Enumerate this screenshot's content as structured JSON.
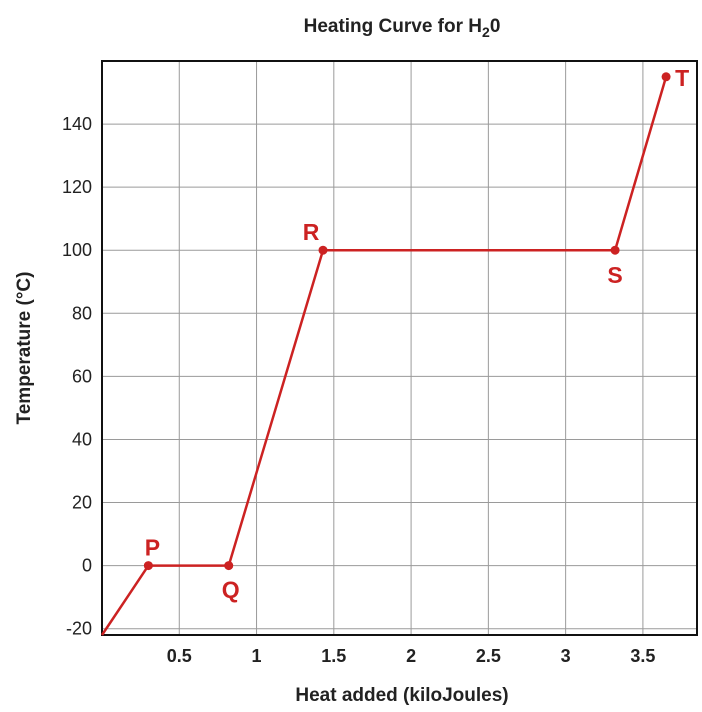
{
  "chart_data": {
    "type": "line",
    "title": "Heating Curve for H",
    "title_subscript": "2",
    "title_suffix": "0",
    "xlabel": "Heat added (kiloJoules)",
    "ylabel": "Temperature (°C)",
    "xlim": [
      0,
      3.85
    ],
    "ylim": [
      -22,
      160
    ],
    "x_ticks": [
      0.5,
      1,
      1.5,
      2,
      2.5,
      3,
      3.5
    ],
    "x_tick_labels": [
      "0.5",
      "1",
      "1.5",
      "2",
      "2.5",
      "3",
      "3.5"
    ],
    "y_ticks": [
      -20,
      0,
      20,
      40,
      60,
      80,
      100,
      120,
      140
    ],
    "y_tick_labels": [
      "-20",
      "0",
      "20",
      "40",
      "60",
      "80",
      "100",
      "120",
      "140"
    ],
    "grid": true,
    "line_color": "#cc2222",
    "series": [
      {
        "x": [
          0,
          0.3,
          0.82,
          1.43,
          3.32,
          3.65
        ],
        "y": [
          -22,
          0,
          0,
          100,
          100,
          155
        ]
      }
    ],
    "labeled_points": [
      {
        "label": "P",
        "x": 0.3,
        "y": 0
      },
      {
        "label": "Q",
        "x": 0.82,
        "y": 0
      },
      {
        "label": "R",
        "x": 1.43,
        "y": 100
      },
      {
        "label": "S",
        "x": 3.32,
        "y": 100
      },
      {
        "label": "T",
        "x": 3.65,
        "y": 155
      }
    ]
  }
}
